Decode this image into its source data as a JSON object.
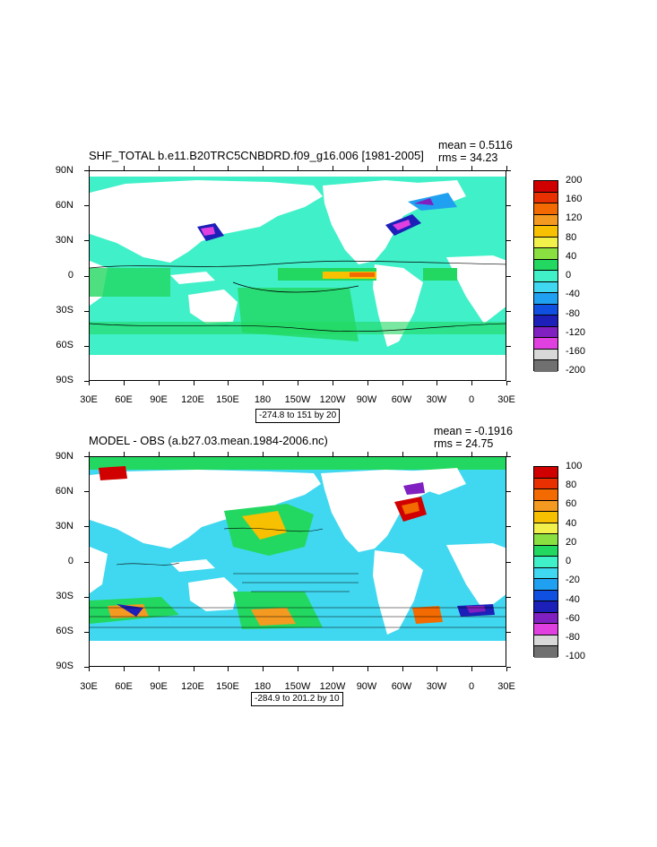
{
  "panels": [
    {
      "title": "SHF_TOTAL b.e11.B20TRC5CNBDRD.f09_g16.006 [1981-2005]",
      "mean": "mean = 0.5116",
      "rms": "rms = 34.23",
      "range": "-274.8 to 151 by 20",
      "colorbar_labels": [
        "200",
        "160",
        "120",
        "80",
        "40",
        "0",
        "-40",
        "-80",
        "-120",
        "-160",
        "-200"
      ]
    },
    {
      "title": "MODEL - OBS (a.b27.03.mean.1984-2006.nc)",
      "mean": "mean = -0.1916",
      "rms": "rms = 24.75",
      "range": "-284.9 to 201.2 by 10",
      "colorbar_labels": [
        "100",
        "80",
        "60",
        "40",
        "20",
        "0",
        "-20",
        "-40",
        "-60",
        "-80",
        "-100"
      ]
    }
  ],
  "x_axis_labels": [
    "30E",
    "60E",
    "90E",
    "120E",
    "150E",
    "180",
    "150W",
    "120W",
    "90W",
    "60W",
    "30W",
    "0",
    "30E"
  ],
  "y_axis_labels": [
    "90N",
    "60N",
    "30N",
    "0",
    "30S",
    "60S",
    "90S"
  ],
  "colorbar_colors": [
    "#d00000",
    "#e83000",
    "#f26a00",
    "#f59a20",
    "#f7c000",
    "#f2f04a",
    "#8ae040",
    "#22d860",
    "#40f0c8",
    "#40d8f0",
    "#20a0f0",
    "#1050e0",
    "#1c20b8",
    "#8020c0",
    "#e040e0",
    "#d8d8d8",
    "#707070"
  ]
}
